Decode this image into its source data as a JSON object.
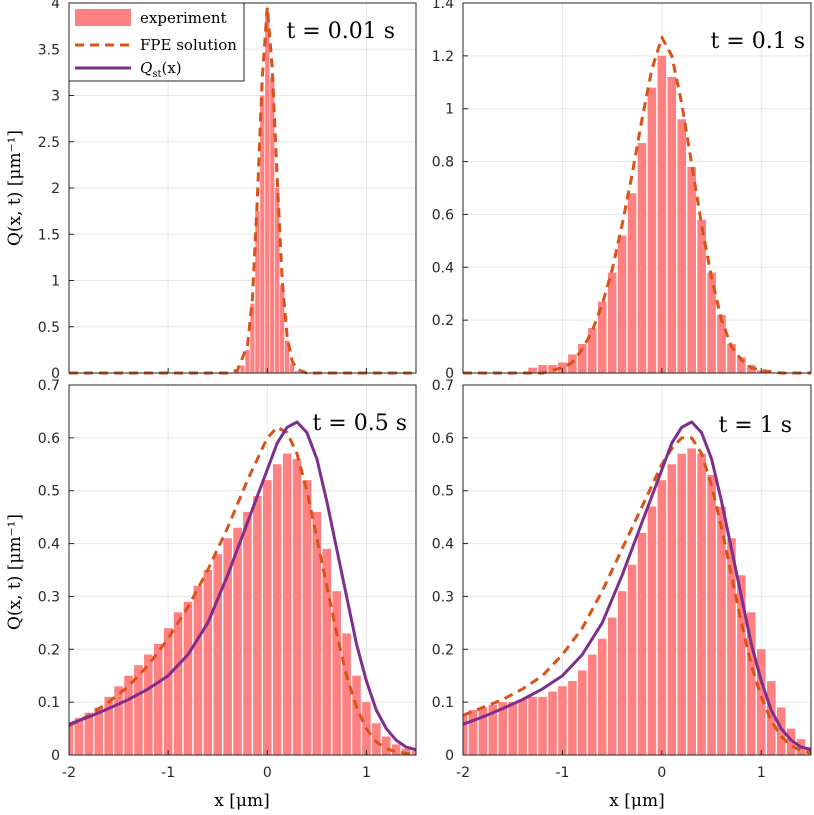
{
  "figure": {
    "ylabel": "Q(x, t) [μm⁻¹]",
    "xlabel": "x [μm]",
    "legend": {
      "experiment": "experiment",
      "fpe": "FPE solution",
      "qst": "Q",
      "qst_sub": "st",
      "qst_arg": "(x)"
    },
    "colors": {
      "bars": "#ff8080",
      "fpe": "#d95319",
      "qst": "#7e2f8e",
      "grid": "#e6e6e6",
      "axis": "#262626"
    }
  },
  "chart_data": [
    {
      "type": "bar",
      "panel": "top-left",
      "annotation": "t = 0.01 s",
      "xlim": [
        -2,
        1.5
      ],
      "ylim": [
        0,
        4
      ],
      "xticks": [
        -2,
        -1,
        0,
        1
      ],
      "yticks": [
        0,
        0.5,
        1,
        1.5,
        2,
        2.5,
        3,
        3.5,
        4
      ],
      "ytick_labels": [
        "0",
        "0.5",
        "1",
        "1.5",
        "2",
        "2.5",
        "3",
        "3.5",
        "4"
      ],
      "legend_position": "top-left",
      "series": [
        {
          "name": "experiment",
          "type": "bar",
          "x": [
            -0.3,
            -0.25,
            -0.2,
            -0.15,
            -0.1,
            -0.05,
            0.0,
            0.05,
            0.1,
            0.15,
            0.2,
            0.25,
            0.3
          ],
          "values": [
            0.02,
            0.08,
            0.25,
            0.75,
            1.75,
            3.0,
            3.9,
            3.2,
            2.0,
            0.95,
            0.35,
            0.1,
            0.02
          ]
        },
        {
          "name": "FPE solution",
          "type": "line",
          "style": "dashed",
          "x": [
            -2.0,
            -0.4,
            -0.3,
            -0.2,
            -0.15,
            -0.1,
            -0.05,
            0.0,
            0.05,
            0.1,
            0.15,
            0.2,
            0.25,
            0.3,
            0.4,
            1.5
          ],
          "values": [
            0,
            0,
            0.03,
            0.3,
            0.8,
            1.9,
            3.2,
            3.95,
            3.3,
            2.1,
            1.0,
            0.4,
            0.13,
            0.04,
            0,
            0
          ]
        }
      ]
    },
    {
      "type": "bar",
      "panel": "top-right",
      "annotation": "t = 0.1 s",
      "xlim": [
        -2,
        1.5
      ],
      "ylim": [
        0,
        1.4
      ],
      "xticks": [
        -2,
        -1,
        0,
        1
      ],
      "yticks": [
        0,
        0.2,
        0.4,
        0.6,
        0.8,
        1,
        1.2,
        1.4
      ],
      "ytick_labels": [
        "0",
        "0.2",
        "0.4",
        "0.6",
        "0.8",
        "1",
        "1.2",
        "1.4"
      ],
      "series": [
        {
          "name": "experiment",
          "type": "bar",
          "x": [
            -1.3,
            -1.2,
            -1.1,
            -1.0,
            -0.9,
            -0.8,
            -0.7,
            -0.6,
            -0.5,
            -0.4,
            -0.3,
            -0.2,
            -0.1,
            0.0,
            0.1,
            0.2,
            0.3,
            0.4,
            0.5,
            0.6,
            0.7,
            0.8,
            0.9,
            1.0
          ],
          "values": [
            0.02,
            0.03,
            0.03,
            0.04,
            0.07,
            0.11,
            0.17,
            0.27,
            0.38,
            0.52,
            0.68,
            0.87,
            1.08,
            1.2,
            1.12,
            0.96,
            0.78,
            0.58,
            0.38,
            0.22,
            0.11,
            0.06,
            0.03,
            0.01
          ]
        },
        {
          "name": "FPE solution",
          "type": "line",
          "style": "dashed",
          "x": [
            -2.0,
            -1.2,
            -1.0,
            -0.9,
            -0.8,
            -0.7,
            -0.6,
            -0.5,
            -0.4,
            -0.3,
            -0.2,
            -0.1,
            0.0,
            0.1,
            0.2,
            0.3,
            0.4,
            0.5,
            0.6,
            0.7,
            0.8,
            0.9,
            1.0,
            1.1,
            1.2,
            1.5
          ],
          "values": [
            0,
            0,
            0.02,
            0.04,
            0.09,
            0.16,
            0.26,
            0.39,
            0.56,
            0.75,
            0.96,
            1.15,
            1.27,
            1.2,
            1.02,
            0.79,
            0.56,
            0.36,
            0.2,
            0.1,
            0.05,
            0.02,
            0.01,
            0.005,
            0,
            0
          ]
        }
      ]
    },
    {
      "type": "bar",
      "panel": "bottom-left",
      "annotation": "t = 0.5 s",
      "xlim": [
        -2,
        1.5
      ],
      "ylim": [
        0,
        0.7
      ],
      "xticks": [
        -2,
        -1,
        0,
        1
      ],
      "yticks": [
        0,
        0.1,
        0.2,
        0.3,
        0.4,
        0.5,
        0.6,
        0.7
      ],
      "ytick_labels": [
        "0",
        "0.1",
        "0.2",
        "0.3",
        "0.4",
        "0.5",
        "0.6",
        "0.7"
      ],
      "xlabel": "x [μm]",
      "series": [
        {
          "name": "experiment",
          "type": "bar",
          "x": [
            -2.0,
            -1.9,
            -1.8,
            -1.7,
            -1.6,
            -1.5,
            -1.4,
            -1.3,
            -1.2,
            -1.1,
            -1.0,
            -0.9,
            -0.8,
            -0.7,
            -0.6,
            -0.5,
            -0.4,
            -0.3,
            -0.2,
            -0.1,
            0.0,
            0.1,
            0.2,
            0.3,
            0.4,
            0.5,
            0.6,
            0.7,
            0.8,
            0.9,
            1.0,
            1.1,
            1.2,
            1.3,
            1.4,
            1.5
          ],
          "values": [
            0.06,
            0.07,
            0.08,
            0.09,
            0.11,
            0.13,
            0.15,
            0.17,
            0.19,
            0.21,
            0.24,
            0.27,
            0.29,
            0.32,
            0.35,
            0.38,
            0.41,
            0.43,
            0.46,
            0.49,
            0.52,
            0.55,
            0.57,
            0.56,
            0.52,
            0.46,
            0.39,
            0.31,
            0.23,
            0.15,
            0.1,
            0.06,
            0.035,
            0.02,
            0.012,
            0.008
          ]
        },
        {
          "name": "FPE solution",
          "type": "line",
          "style": "dashed",
          "x": [
            -2.0,
            -1.8,
            -1.6,
            -1.4,
            -1.2,
            -1.0,
            -0.8,
            -0.6,
            -0.4,
            -0.2,
            0.0,
            0.1,
            0.2,
            0.3,
            0.4,
            0.5,
            0.6,
            0.7,
            0.8,
            0.9,
            1.0,
            1.1,
            1.2,
            1.3,
            1.4,
            1.5
          ],
          "values": [
            0.055,
            0.075,
            0.1,
            0.13,
            0.17,
            0.22,
            0.28,
            0.35,
            0.43,
            0.52,
            0.6,
            0.62,
            0.61,
            0.57,
            0.5,
            0.41,
            0.32,
            0.23,
            0.15,
            0.09,
            0.05,
            0.025,
            0.012,
            0.006,
            0.003,
            0.002
          ]
        },
        {
          "name": "Q_st(x)",
          "type": "line",
          "style": "solid",
          "x": [
            -2.0,
            -1.8,
            -1.6,
            -1.4,
            -1.2,
            -1.0,
            -0.8,
            -0.6,
            -0.4,
            -0.2,
            0.0,
            0.1,
            0.2,
            0.3,
            0.4,
            0.5,
            0.6,
            0.7,
            0.8,
            0.9,
            1.0,
            1.1,
            1.2,
            1.3,
            1.4,
            1.5
          ],
          "values": [
            0.058,
            0.072,
            0.088,
            0.105,
            0.125,
            0.15,
            0.19,
            0.25,
            0.34,
            0.44,
            0.54,
            0.59,
            0.62,
            0.63,
            0.61,
            0.56,
            0.48,
            0.39,
            0.3,
            0.21,
            0.14,
            0.085,
            0.05,
            0.028,
            0.015,
            0.01
          ]
        }
      ]
    },
    {
      "type": "bar",
      "panel": "bottom-right",
      "annotation": "t = 1 s",
      "xlim": [
        -2,
        1.5
      ],
      "ylim": [
        0,
        0.7
      ],
      "xticks": [
        -2,
        -1,
        0,
        1
      ],
      "yticks": [
        0,
        0.1,
        0.2,
        0.3,
        0.4,
        0.5,
        0.6,
        0.7
      ],
      "ytick_labels": [
        "0",
        "0.1",
        "0.2",
        "0.3",
        "0.4",
        "0.5",
        "0.6",
        "0.7"
      ],
      "xlabel": "x [μm]",
      "series": [
        {
          "name": "experiment",
          "type": "bar",
          "x": [
            -2.0,
            -1.9,
            -1.8,
            -1.7,
            -1.6,
            -1.5,
            -1.4,
            -1.3,
            -1.2,
            -1.1,
            -1.0,
            -0.9,
            -0.8,
            -0.7,
            -0.6,
            -0.5,
            -0.4,
            -0.3,
            -0.2,
            -0.1,
            0.0,
            0.1,
            0.2,
            0.3,
            0.4,
            0.5,
            0.6,
            0.7,
            0.8,
            0.9,
            1.0,
            1.1,
            1.2,
            1.3,
            1.4,
            1.5
          ],
          "values": [
            0.075,
            0.085,
            0.09,
            0.095,
            0.1,
            0.1,
            0.105,
            0.11,
            0.11,
            0.12,
            0.13,
            0.14,
            0.16,
            0.19,
            0.22,
            0.26,
            0.31,
            0.36,
            0.42,
            0.47,
            0.52,
            0.55,
            0.57,
            0.58,
            0.57,
            0.53,
            0.47,
            0.41,
            0.34,
            0.27,
            0.2,
            0.14,
            0.09,
            0.05,
            0.03,
            0.015
          ]
        },
        {
          "name": "FPE solution",
          "type": "line",
          "style": "dashed",
          "x": [
            -2.0,
            -1.8,
            -1.6,
            -1.4,
            -1.2,
            -1.0,
            -0.8,
            -0.6,
            -0.4,
            -0.2,
            0.0,
            0.1,
            0.2,
            0.3,
            0.4,
            0.5,
            0.6,
            0.7,
            0.8,
            0.9,
            1.0,
            1.1,
            1.2,
            1.3,
            1.4,
            1.5
          ],
          "values": [
            0.075,
            0.09,
            0.105,
            0.125,
            0.15,
            0.19,
            0.24,
            0.31,
            0.39,
            0.47,
            0.55,
            0.58,
            0.6,
            0.6,
            0.57,
            0.51,
            0.43,
            0.34,
            0.25,
            0.17,
            0.11,
            0.065,
            0.035,
            0.018,
            0.008,
            0.004
          ]
        },
        {
          "name": "Q_st(x)",
          "type": "line",
          "style": "solid",
          "x": [
            -2.0,
            -1.8,
            -1.6,
            -1.4,
            -1.2,
            -1.0,
            -0.8,
            -0.6,
            -0.4,
            -0.2,
            0.0,
            0.1,
            0.2,
            0.3,
            0.4,
            0.5,
            0.6,
            0.7,
            0.8,
            0.9,
            1.0,
            1.1,
            1.2,
            1.3,
            1.4,
            1.5
          ],
          "values": [
            0.058,
            0.072,
            0.088,
            0.105,
            0.125,
            0.15,
            0.19,
            0.25,
            0.34,
            0.44,
            0.54,
            0.59,
            0.62,
            0.63,
            0.61,
            0.56,
            0.48,
            0.39,
            0.3,
            0.21,
            0.14,
            0.085,
            0.05,
            0.028,
            0.015,
            0.01
          ]
        }
      ]
    }
  ]
}
